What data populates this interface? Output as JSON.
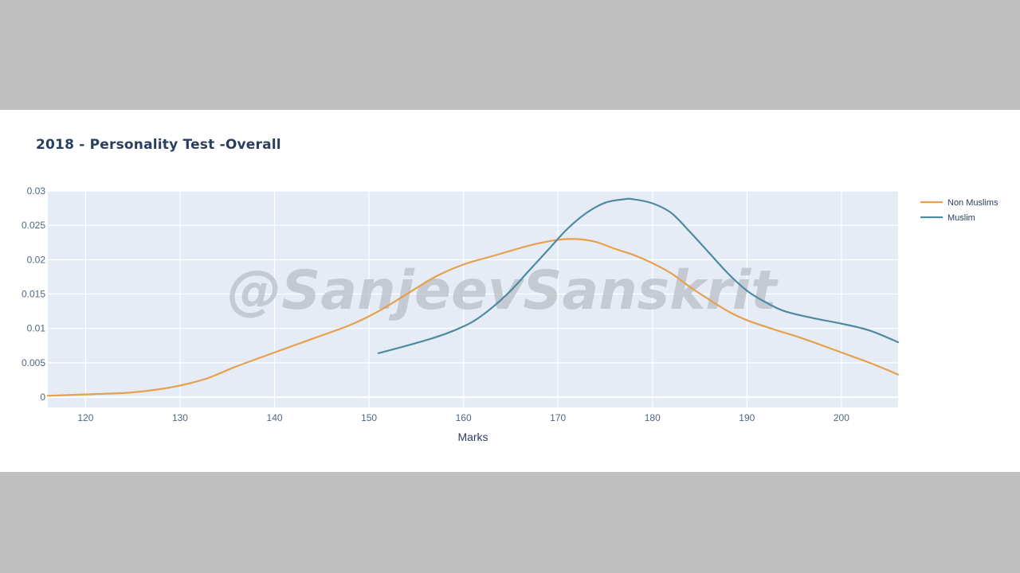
{
  "chart_data": {
    "type": "line",
    "title": "2018 - Personality Test -Overall",
    "xlabel": "Marks",
    "ylabel": "",
    "xlim": [
      116,
      206
    ],
    "ylim": [
      -0.0015,
      0.03
    ],
    "xticks": [
      120,
      130,
      140,
      150,
      160,
      170,
      180,
      190,
      200
    ],
    "yticks": [
      0,
      0.005,
      0.01,
      0.015,
      0.02,
      0.025,
      0.03
    ],
    "ytick_labels": [
      "0",
      "0.005",
      "0.01",
      "0.015",
      "0.02",
      "0.025",
      "0.03"
    ],
    "grid": true,
    "legend_position": "right",
    "series": [
      {
        "name": "Non Muslims",
        "color": "#e6a04e",
        "x": [
          116,
          120,
          124,
          127,
          130,
          133,
          136,
          140,
          144,
          148,
          151,
          154,
          157,
          160,
          163,
          166,
          168,
          170,
          172,
          174,
          176,
          178,
          180,
          182,
          184,
          186,
          188,
          190,
          193,
          196,
          200,
          203,
          206
        ],
        "y": [
          0.0002,
          0.0004,
          0.0006,
          0.001,
          0.0017,
          0.0028,
          0.0045,
          0.0065,
          0.0085,
          0.0105,
          0.0125,
          0.015,
          0.0175,
          0.0193,
          0.0205,
          0.0217,
          0.0224,
          0.0229,
          0.023,
          0.0226,
          0.0216,
          0.0207,
          0.0195,
          0.018,
          0.016,
          0.0142,
          0.0125,
          0.0112,
          0.0098,
          0.0085,
          0.0065,
          0.005,
          0.0033
        ]
      },
      {
        "name": "Muslim",
        "color": "#4f8aa0",
        "x": [
          151,
          154,
          157,
          159,
          161,
          163,
          165,
          167,
          169,
          171,
          173,
          175,
          177,
          178,
          180,
          182,
          184,
          186,
          188,
          190,
          192,
          194,
          197,
          200,
          203,
          206
        ],
        "y": [
          0.0064,
          0.0075,
          0.0087,
          0.0097,
          0.011,
          0.013,
          0.0155,
          0.0185,
          0.0215,
          0.0245,
          0.0268,
          0.0283,
          0.0288,
          0.0288,
          0.0282,
          0.0268,
          0.024,
          0.021,
          0.018,
          0.0155,
          0.0138,
          0.0125,
          0.0115,
          0.0107,
          0.0097,
          0.008
        ]
      }
    ]
  },
  "watermark": "@SanjeevSanskrit"
}
